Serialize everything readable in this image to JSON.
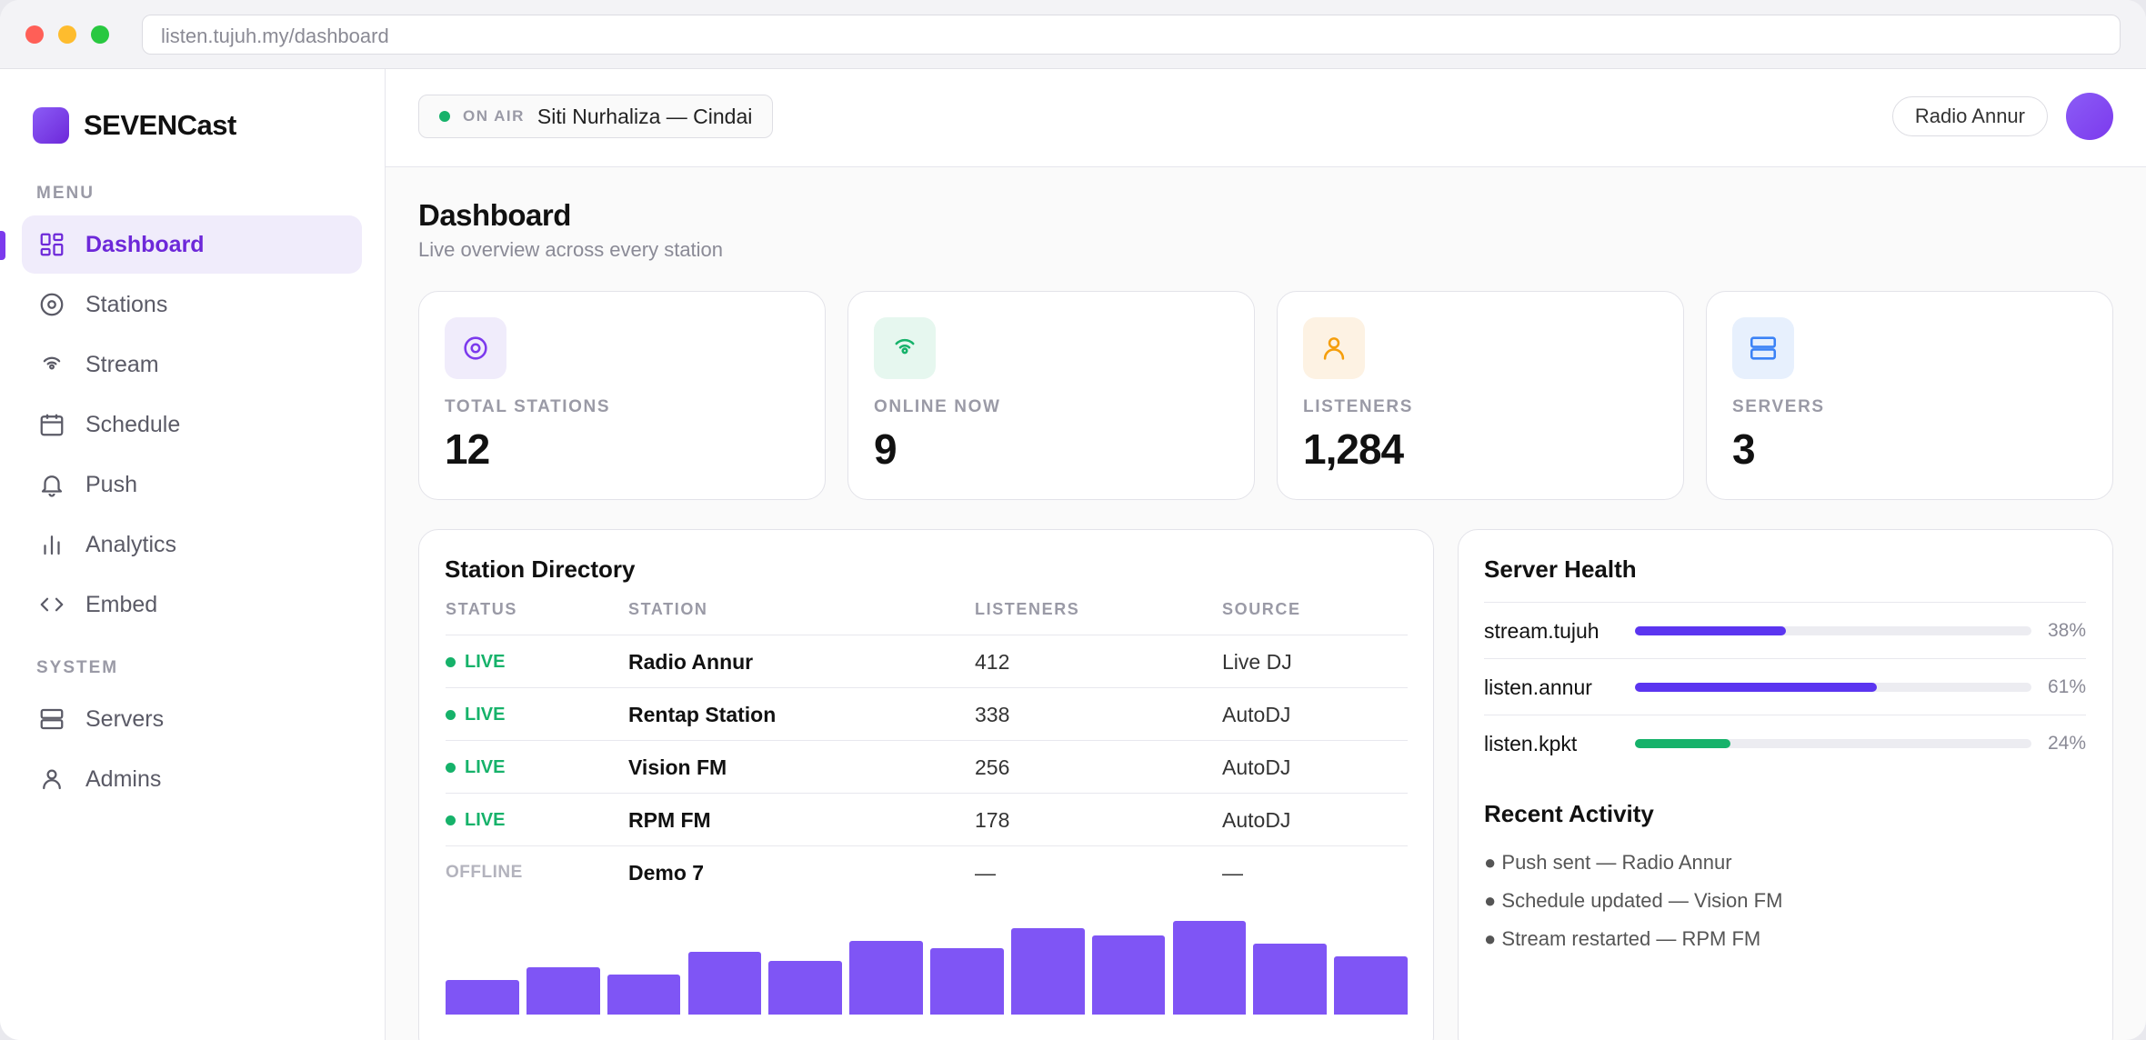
{
  "browser": {
    "url": "listen.tujuh.my/dashboard"
  },
  "brand": {
    "name": "SEVENCast",
    "accent": "#7c3aed"
  },
  "sidebar": {
    "menu_label": "MENU",
    "system_label": "SYSTEM",
    "menu_items": [
      {
        "label": "Dashboard",
        "icon": "dashboard-icon",
        "active": true
      },
      {
        "label": "Stations",
        "icon": "stations-icon"
      },
      {
        "label": "Stream",
        "icon": "stream-icon"
      },
      {
        "label": "Schedule",
        "icon": "calendar-icon"
      },
      {
        "label": "Push",
        "icon": "bell-icon"
      },
      {
        "label": "Analytics",
        "icon": "bar-chart-icon"
      },
      {
        "label": "Embed",
        "icon": "code-icon"
      }
    ],
    "system_items": [
      {
        "label": "Servers",
        "icon": "server-icon"
      },
      {
        "label": "Admins",
        "icon": "user-icon"
      }
    ]
  },
  "topbar": {
    "on_air_label": "ON AIR",
    "now_playing": "Siti Nurhaliza — Cindai",
    "station_selector": "Radio Annur"
  },
  "page": {
    "title": "Dashboard",
    "subtitle": "Live overview across every station"
  },
  "stats": [
    {
      "label": "TOTAL STATIONS",
      "value": "12",
      "icon": "stations-icon",
      "color": "#7c3aed"
    },
    {
      "label": "ONLINE NOW",
      "value": "9",
      "icon": "broadcast-icon",
      "color": "#16b26a"
    },
    {
      "label": "LISTENERS",
      "value": "1,284",
      "icon": "user-icon",
      "color": "#f59e0b"
    },
    {
      "label": "SERVERS",
      "value": "3",
      "icon": "server-icon",
      "color": "#3b82f6"
    }
  ],
  "directory": {
    "title": "Station Directory",
    "columns": [
      "STATUS",
      "STATION",
      "LISTENERS",
      "SOURCE"
    ],
    "rows": [
      {
        "status": "LIVE",
        "station": "Radio Annur",
        "listeners": "412",
        "source": "Live DJ"
      },
      {
        "status": "LIVE",
        "station": "Rentap Station",
        "listeners": "338",
        "source": "AutoDJ"
      },
      {
        "status": "LIVE",
        "station": "Vision FM",
        "listeners": "256",
        "source": "AutoDJ"
      },
      {
        "status": "LIVE",
        "station": "RPM FM",
        "listeners": "178",
        "source": "AutoDJ"
      },
      {
        "status": "OFFLINE",
        "station": "Demo 7",
        "listeners": "—",
        "source": "—"
      }
    ]
  },
  "chart_data": {
    "type": "bar",
    "bar_color": "#7f55f5",
    "values": [
      38,
      52,
      44,
      68,
      58,
      80,
      72,
      94,
      86,
      102,
      77,
      63
    ],
    "ylim": [
      0,
      105
    ]
  },
  "server_health": {
    "title": "Server Health",
    "servers": [
      {
        "name": "stream.tujuh",
        "percent_label": "38%",
        "fraction": 0.38,
        "color": "#5b35f0"
      },
      {
        "name": "listen.annur",
        "percent_label": "61%",
        "fraction": 0.61,
        "color": "#5b35f0"
      },
      {
        "name": "listen.kpkt",
        "percent_label": "24%",
        "fraction": 0.24,
        "color": "#16b26a"
      }
    ]
  },
  "activity": {
    "title": "Recent Activity",
    "items": [
      "● Push sent — Radio Annur",
      "● Schedule updated — Vision FM",
      "● Stream restarted — RPM FM"
    ]
  }
}
